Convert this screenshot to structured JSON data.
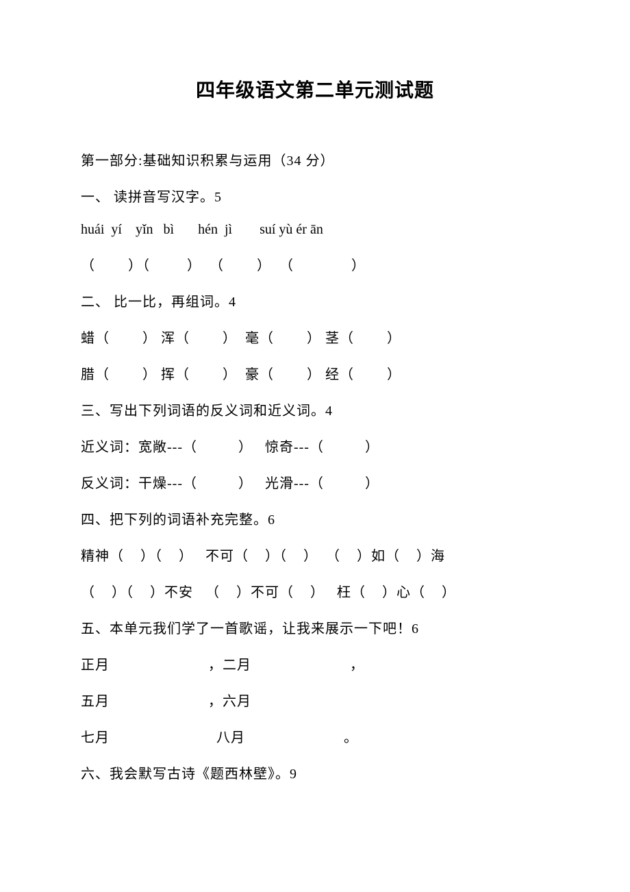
{
  "title": "四年级语文第二单元测试题",
  "part1_header": "第一部分:基础知识积累与运用（34 分）",
  "q1_header": "一、 读拼音写汉字。5",
  "q1_pinyin": "huái  yí    yǐn   bì       hén  jì        suí yù ér ān",
  "q1_blanks": "（        ）（         ）  （        ）  （              ）",
  "q2_header": "二、 比一比，再组词。4",
  "q2_line1": "蜡（        ） 浑（        ）  毫（        ） 茎（        ）",
  "q2_line2": "腊（        ） 挥（        ）  豪（        ） 经（        ）",
  "q3_header": "三、写出下列词语的反义词和近义词。4",
  "q3_line1": "近义词：宽敞---（          ）   惊奇---（          ）",
  "q3_line2": "反义词：干燥---（          ）   光滑---（          ）",
  "q4_header": "四、把下列的词语补充完整。6",
  "q4_line1": "精神（    ）（    ）   不可（    ）（    ）  （    ）如（    ）海",
  "q4_line2": "（    ）（    ）不安   （    ）不可（    ）   枉（    ）心（    ）",
  "q5_header": "五、本单元我们学了一首歌谣，让我来展示一下吧！6",
  "q5_line1": "正月                        ，二月                        ，",
  "q5_line2": "五月                        ，六月",
  "q5_line3": "七月                          八月                        。",
  "q6_header": "六、我会默写古诗《题西林壁》。9"
}
